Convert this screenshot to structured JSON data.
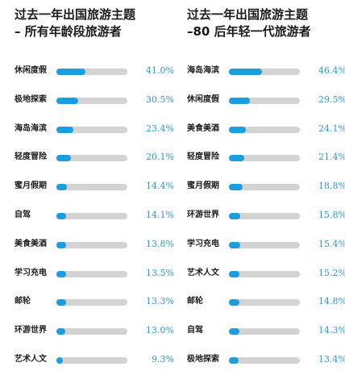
{
  "chart_data": [
    {
      "type": "bar",
      "title_lines": [
        "过去一年出国旅游主题",
        "– 所有年龄段旅游者"
      ],
      "categories": [
        "休闲度假",
        "极地探索",
        "海岛海滨",
        "轻度冒险",
        "蜜月假期",
        "自驾",
        "美食美酒",
        "学习充电",
        "邮轮",
        "环游世界",
        "艺术人文"
      ],
      "values": [
        41.0,
        30.5,
        23.4,
        20.1,
        14.4,
        14.1,
        13.8,
        13.5,
        13.3,
        13.0,
        9.3
      ],
      "value_labels": [
        "41.0%",
        "30.5%",
        "23.4%",
        "20.1%",
        "14.4%",
        "14.1%",
        "13.8%",
        "13.5%",
        "13.3%",
        "13.0%",
        "9.3%"
      ],
      "unit": "%",
      "orientation": "horizontal",
      "track_max": 100
    },
    {
      "type": "bar",
      "title_lines": [
        "过去一年出国旅游主题",
        "–80 后年轻一代旅游者"
      ],
      "categories": [
        "海岛海滨",
        "休闲度假",
        "美食美酒",
        "轻度冒险",
        "蜜月假期",
        "环游世界",
        "学习充电",
        "艺术人文",
        "邮轮",
        "自驾",
        "极地探索"
      ],
      "values": [
        46.4,
        29.5,
        24.1,
        21.4,
        18.8,
        15.8,
        15.4,
        15.2,
        14.8,
        14.3,
        13.4
      ],
      "value_labels": [
        "46.4%",
        "29.5%",
        "24.1%",
        "21.4%",
        "18.8%",
        "15.8%",
        "15.4%",
        "15.2%",
        "14.8%",
        "14.3%",
        "13.4%"
      ],
      "unit": "%",
      "orientation": "horizontal",
      "track_max": 100
    }
  ],
  "colors": {
    "bar_fill": "#1a9ee0",
    "bar_track": "#d3d3d3",
    "value_text": "#2a98d4",
    "text": "#1a1a1a"
  }
}
